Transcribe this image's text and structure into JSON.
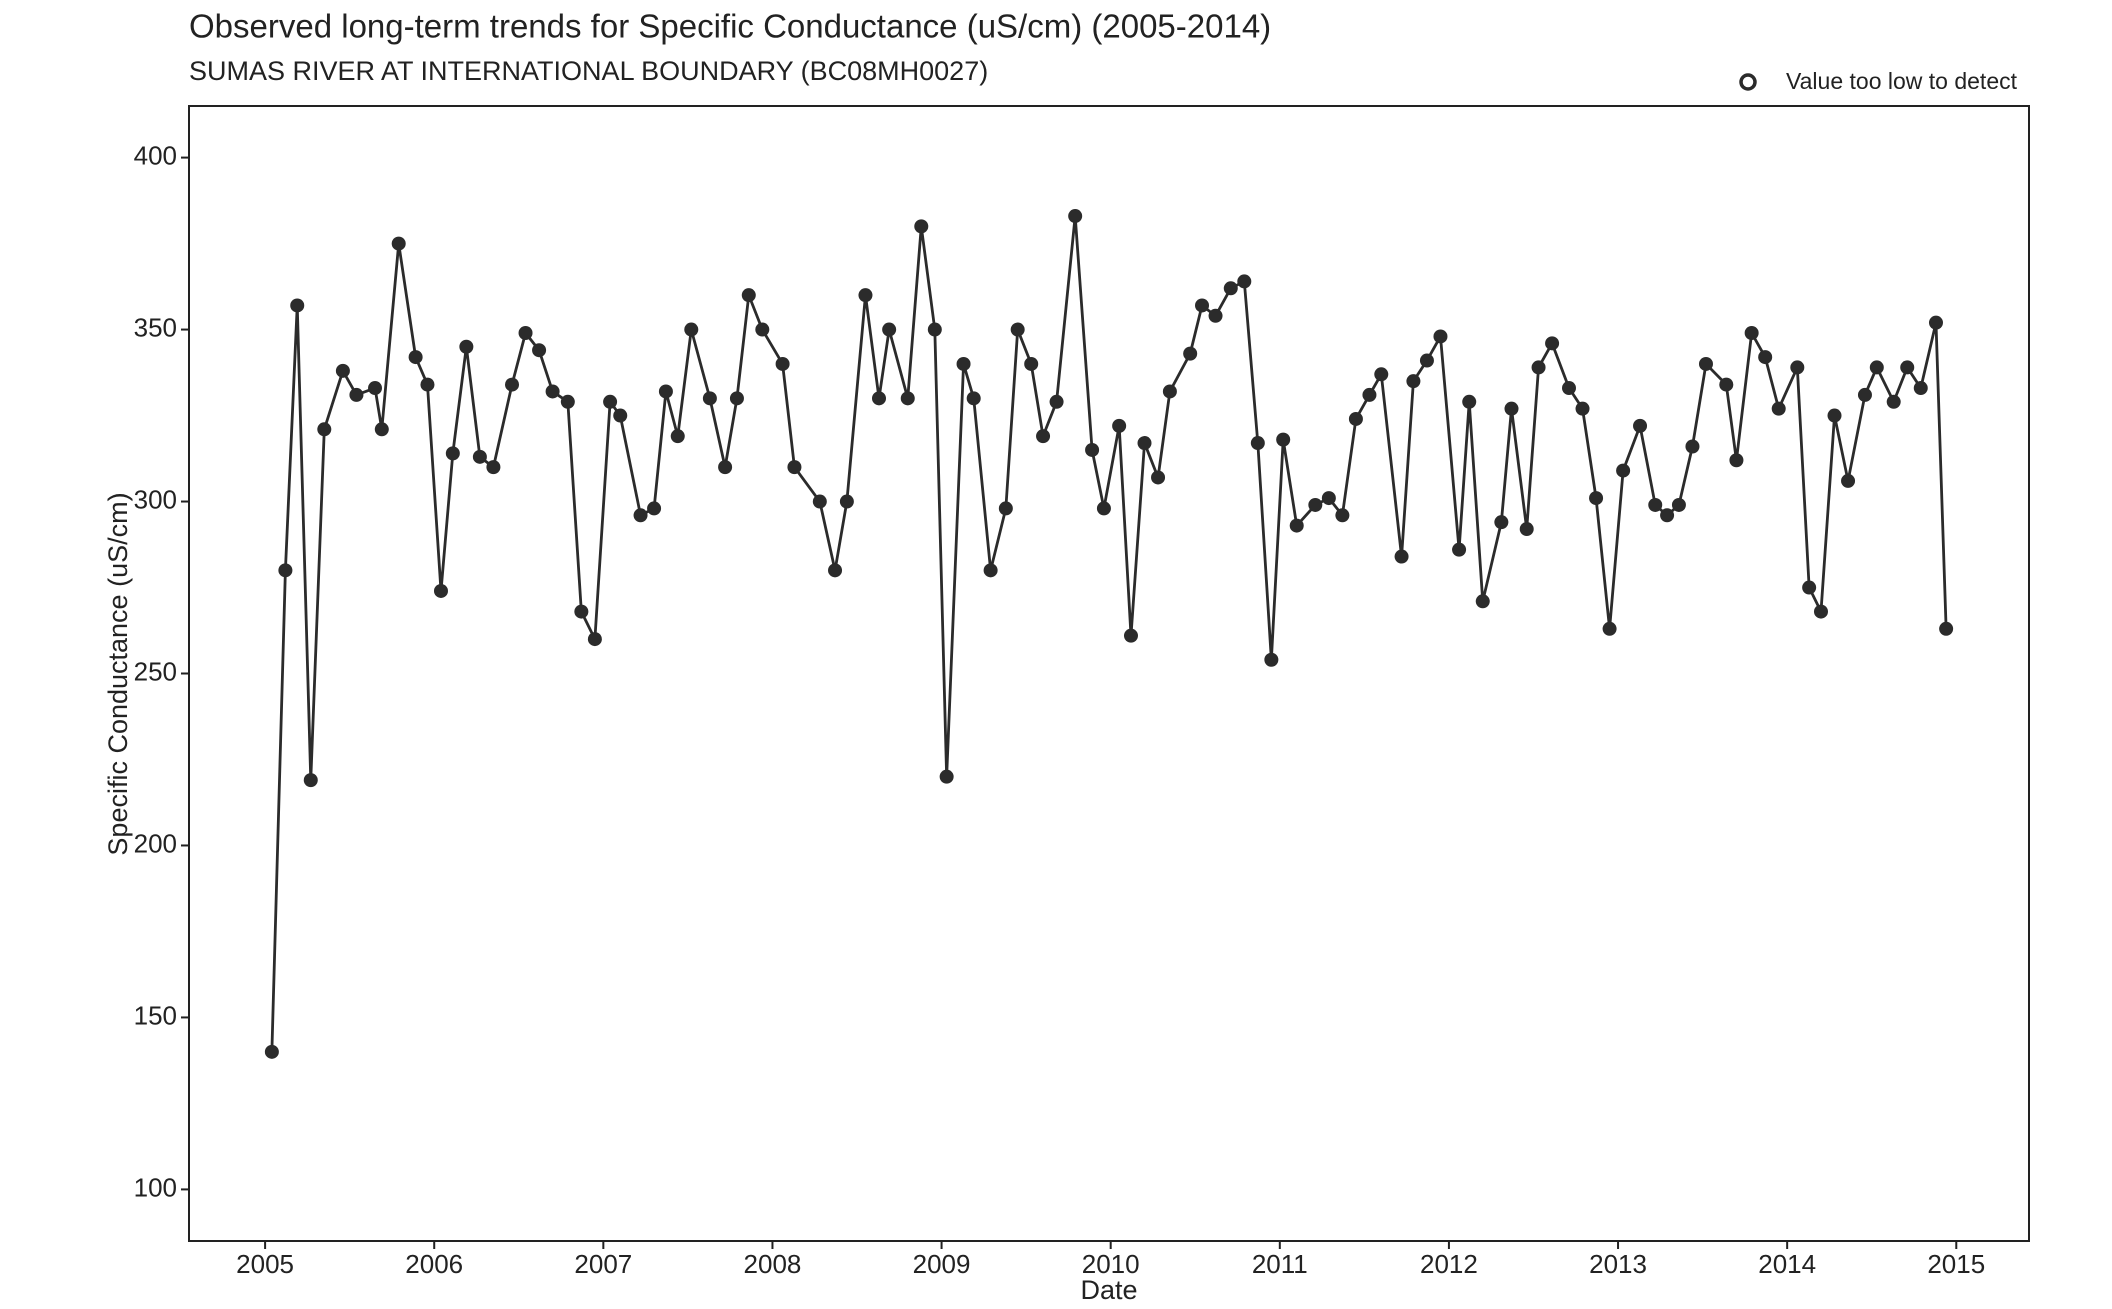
{
  "chart_data": {
    "type": "line",
    "title": "Observed long-term trends for Specific Conductance (uS/cm) (2005-2014)",
    "subtitle": "SUMAS RIVER AT INTERNATIONAL BOUNDARY (BC08MH0027)",
    "x_label": "Date",
    "y_label": "Specific Conductance (uS/cm)",
    "legend_label": "Value too low to detect",
    "legend_position": "top-right",
    "color": "#2b2b2b",
    "x": [
      2005.04,
      2005.12,
      2005.19,
      2005.27,
      2005.35,
      2005.46,
      2005.54,
      2005.65,
      2005.69,
      2005.79,
      2005.89,
      2005.96,
      2006.04,
      2006.11,
      2006.19,
      2006.27,
      2006.35,
      2006.46,
      2006.54,
      2006.62,
      2006.7,
      2006.79,
      2006.87,
      2006.95,
      2007.04,
      2007.1,
      2007.22,
      2007.3,
      2007.37,
      2007.44,
      2007.52,
      2007.63,
      2007.72,
      2007.79,
      2007.86,
      2007.94,
      2008.06,
      2008.13,
      2008.28,
      2008.37,
      2008.44,
      2008.55,
      2008.63,
      2008.69,
      2008.8,
      2008.88,
      2008.96,
      2009.03,
      2009.13,
      2009.19,
      2009.29,
      2009.38,
      2009.45,
      2009.53,
      2009.6,
      2009.68,
      2009.79,
      2009.89,
      2009.96,
      2010.05,
      2010.12,
      2010.2,
      2010.28,
      2010.35,
      2010.47,
      2010.54,
      2010.62,
      2010.71,
      2010.79,
      2010.87,
      2010.95,
      2011.02,
      2011.1,
      2011.21,
      2011.29,
      2011.37,
      2011.45,
      2011.53,
      2011.6,
      2011.72,
      2011.79,
      2011.87,
      2011.95,
      2012.06,
      2012.12,
      2012.2,
      2012.31,
      2012.37,
      2012.46,
      2012.53,
      2012.61,
      2012.71,
      2012.79,
      2012.87,
      2012.95,
      2013.03,
      2013.13,
      2013.22,
      2013.29,
      2013.36,
      2013.44,
      2013.52,
      2013.64,
      2013.7,
      2013.79,
      2013.87,
      2013.95,
      2014.06,
      2014.13,
      2014.2,
      2014.28,
      2014.36,
      2014.46,
      2014.53,
      2014.63,
      2014.71,
      2014.79,
      2014.88,
      2014.94
    ],
    "series": [
      {
        "color": "#2b2b2b",
        "values": [
          140,
          280,
          357,
          219,
          321,
          338,
          331,
          333,
          321,
          375,
          342,
          334,
          274,
          314,
          345,
          313,
          310,
          334,
          349,
          344,
          332,
          329,
          268,
          260,
          329,
          325,
          296,
          298,
          332,
          319,
          350,
          330,
          310,
          330,
          360,
          350,
          340,
          310,
          300,
          280,
          300,
          360,
          330,
          350,
          330,
          380,
          350,
          220,
          340,
          330,
          280,
          298,
          350,
          340,
          319,
          329,
          383,
          315,
          298,
          322,
          261,
          317,
          307,
          332,
          343,
          357,
          354,
          362,
          364,
          317,
          254,
          318,
          293,
          299,
          301,
          296,
          324,
          331,
          337,
          284,
          335,
          341,
          348,
          286,
          329,
          271,
          294,
          327,
          292,
          339,
          346,
          333,
          327,
          301,
          263,
          309,
          322,
          299,
          296,
          299,
          316,
          340,
          334,
          312,
          349,
          342,
          327,
          339,
          275,
          268,
          325,
          306,
          331,
          339,
          329,
          339,
          333,
          352,
          263
        ]
      }
    ],
    "xlim": [
      2004.55,
      2015.43
    ],
    "ylim": [
      85,
      415
    ],
    "xticks": [
      2005,
      2006,
      2007,
      2008,
      2009,
      2010,
      2011,
      2012,
      2013,
      2014,
      2015
    ],
    "yticks": [
      100,
      150,
      200,
      250,
      300,
      350,
      400
    ],
    "grid": false
  }
}
